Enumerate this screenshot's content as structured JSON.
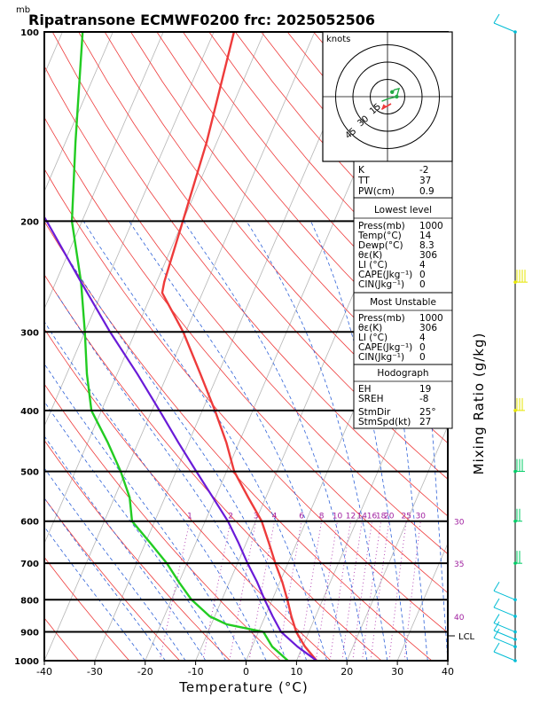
{
  "title": "Ripatransone ECMWF0200  frc: 2025052506",
  "yunit": "mb",
  "xlabel": "Temperature (°C)",
  "right_axis_label": "Mixing Ratio (g/kg)",
  "lcl_label": "LCL",
  "hodograph": {
    "unit_label": "knots",
    "ring_labels": [
      "15",
      "30",
      "45"
    ]
  },
  "index_box": [
    {
      "label": "K",
      "value": "-2"
    },
    {
      "label": "TT",
      "value": "37"
    },
    {
      "label": "PW(cm)",
      "value": "0.9"
    }
  ],
  "lowest_level": {
    "heading": "Lowest level",
    "rows": [
      {
        "label": "Press(mb)",
        "value": "1000"
      },
      {
        "label": "Temp(°C)",
        "value": "14"
      },
      {
        "label": "Dewp(°C)",
        "value": "8.3"
      },
      {
        "label": "θε(K)",
        "value": "306"
      },
      {
        "label": "LI (°C)",
        "value": "4"
      },
      {
        "label": "CAPE(Jkg⁻¹)",
        "value": "0"
      },
      {
        "label": "CIN(Jkg⁻¹)",
        "value": "0"
      }
    ]
  },
  "most_unstable": {
    "heading": "Most Unstable",
    "rows": [
      {
        "label": "Press(mb)",
        "value": "1000"
      },
      {
        "label": "θε(K)",
        "value": "306"
      },
      {
        "label": "LI (°C)",
        "value": "4"
      },
      {
        "label": "CAPE(Jkg⁻¹)",
        "value": "0"
      },
      {
        "label": "CIN(Jkg⁻¹)",
        "value": "0"
      }
    ]
  },
  "hodograph_box": {
    "heading": "Hodograph",
    "rows": [
      {
        "label": "EH",
        "value": "19"
      },
      {
        "label": "SREH",
        "value": "-8"
      },
      {
        "label": "StmDir",
        "value": "25°"
      },
      {
        "label": "StmSpd(kt)",
        "value": "27"
      }
    ]
  },
  "chart_data": {
    "type": "line",
    "subtype": "skew-T log-P diagram",
    "title": "Ripatransone ECMWF0200  frc: 2025052506",
    "xlabel": "Temperature (°C)",
    "ylabel": "mb",
    "xlim": [
      -40,
      40
    ],
    "ylim": [
      1000,
      100
    ],
    "y_scale": "log",
    "x_ticks": [
      -40,
      -30,
      -20,
      -10,
      0,
      10,
      20,
      30,
      40
    ],
    "y_ticks": [
      100,
      200,
      300,
      400,
      500,
      600,
      700,
      800,
      900,
      1000
    ],
    "mixing_ratio_labels": [
      "1",
      "2",
      "3",
      "4",
      "6",
      "8",
      "10",
      "12",
      "14",
      "16",
      "18",
      "20",
      "25",
      "30"
    ],
    "theta_e_labels": [
      "30",
      "35",
      "40"
    ],
    "colors": {
      "temperature": "#ee3b3b",
      "dewpoint": "#22cc22",
      "parcel": "#6a1bd8",
      "wind_low": "#00bcd4",
      "wind_mid": "#e6e600",
      "wind_high": "#00cc66"
    },
    "series": [
      {
        "name": "Temperature",
        "points": [
          {
            "p": 1000,
            "t": 14
          },
          {
            "p": 950,
            "t": 10.5
          },
          {
            "p": 925,
            "t": 9
          },
          {
            "p": 900,
            "t": 7.5
          },
          {
            "p": 850,
            "t": 5.2
          },
          {
            "p": 800,
            "t": 3
          },
          {
            "p": 750,
            "t": 0.5
          },
          {
            "p": 700,
            "t": -2.5
          },
          {
            "p": 650,
            "t": -5.5
          },
          {
            "p": 600,
            "t": -8.8
          },
          {
            "p": 550,
            "t": -13.5
          },
          {
            "p": 500,
            "t": -18.5
          },
          {
            "p": 450,
            "t": -22.5
          },
          {
            "p": 400,
            "t": -27.5
          },
          {
            "p": 350,
            "t": -33.5
          },
          {
            "p": 300,
            "t": -40.5
          },
          {
            "p": 260,
            "t": -48
          },
          {
            "p": 250,
            "t": -48.5
          },
          {
            "p": 200,
            "t": -50
          },
          {
            "p": 150,
            "t": -52
          },
          {
            "p": 100,
            "t": -56
          }
        ]
      },
      {
        "name": "Dewpoint",
        "points": [
          {
            "p": 1000,
            "t": 8.3
          },
          {
            "p": 950,
            "t": 4
          },
          {
            "p": 900,
            "t": 1
          },
          {
            "p": 875,
            "t": -7
          },
          {
            "p": 850,
            "t": -11
          },
          {
            "p": 800,
            "t": -16
          },
          {
            "p": 750,
            "t": -20
          },
          {
            "p": 700,
            "t": -24
          },
          {
            "p": 650,
            "t": -29
          },
          {
            "p": 600,
            "t": -34.5
          },
          {
            "p": 550,
            "t": -37
          },
          {
            "p": 500,
            "t": -41
          },
          {
            "p": 450,
            "t": -46
          },
          {
            "p": 400,
            "t": -52
          },
          {
            "p": 350,
            "t": -56
          },
          {
            "p": 300,
            "t": -60
          },
          {
            "p": 250,
            "t": -65
          },
          {
            "p": 200,
            "t": -72
          },
          {
            "p": 150,
            "t": -78
          },
          {
            "p": 100,
            "t": -86
          }
        ]
      },
      {
        "name": "Parcel",
        "points": [
          {
            "p": 1000,
            "t": 14
          },
          {
            "p": 950,
            "t": 9
          },
          {
            "p": 900,
            "t": 4.5
          },
          {
            "p": 850,
            "t": 1.5
          },
          {
            "p": 800,
            "t": -1.5
          },
          {
            "p": 750,
            "t": -4.5
          },
          {
            "p": 700,
            "t": -8
          },
          {
            "p": 650,
            "t": -11.5
          },
          {
            "p": 600,
            "t": -15.5
          },
          {
            "p": 550,
            "t": -20.5
          },
          {
            "p": 500,
            "t": -26
          },
          {
            "p": 450,
            "t": -32
          },
          {
            "p": 400,
            "t": -38.5
          },
          {
            "p": 350,
            "t": -46
          },
          {
            "p": 300,
            "t": -55
          },
          {
            "p": 250,
            "t": -65
          },
          {
            "p": 200,
            "t": -77
          },
          {
            "p": 150,
            "t": -93
          }
        ]
      }
    ],
    "hodograph_points": [
      {
        "u": 4,
        "v": 4
      },
      {
        "u": 6,
        "v": 6
      },
      {
        "u": 10,
        "v": 7
      },
      {
        "u": 8,
        "v": 0
      },
      {
        "u": 0,
        "v": -2
      },
      {
        "u": -5,
        "v": -4
      }
    ],
    "storm_motion": {
      "dir": 25,
      "spd": 27
    },
    "wind_barbs": [
      {
        "p": 100,
        "spd": 15,
        "color": "wind_low"
      },
      {
        "p": 250,
        "spd": 40,
        "color": "wind_mid"
      },
      {
        "p": 400,
        "spd": 30,
        "color": "wind_mid"
      },
      {
        "p": 500,
        "spd": 30,
        "color": "wind_high"
      },
      {
        "p": 600,
        "spd": 20,
        "color": "wind_high"
      },
      {
        "p": 700,
        "spd": 20,
        "color": "wind_high"
      },
      {
        "p": 800,
        "spd": 15,
        "color": "wind_low"
      },
      {
        "p": 850,
        "spd": 15,
        "color": "wind_low"
      },
      {
        "p": 900,
        "spd": 15,
        "color": "wind_low"
      },
      {
        "p": 925,
        "spd": 15,
        "color": "wind_low"
      },
      {
        "p": 950,
        "spd": 15,
        "color": "wind_low"
      },
      {
        "p": 1000,
        "spd": 15,
        "color": "wind_low"
      }
    ]
  }
}
